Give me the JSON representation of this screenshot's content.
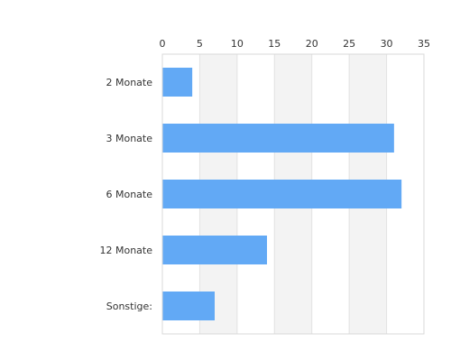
{
  "chart_data": {
    "type": "bar",
    "orientation": "horizontal",
    "categories": [
      "2 Monate",
      "3 Monate",
      "6 Monate",
      "12 Monate",
      "Sonstige:"
    ],
    "values": [
      4,
      31,
      32,
      14,
      7
    ],
    "xlim": [
      0,
      35
    ],
    "xticks": [
      "0",
      "5",
      "10",
      "15",
      "20",
      "25",
      "30",
      "35"
    ],
    "x_axis_position": "top",
    "grid": true,
    "bar_color": "#62a9f5",
    "band_color": "#f3f3f3",
    "grid_color": "#e2e2e2",
    "border_color": "#d8d8d8"
  }
}
